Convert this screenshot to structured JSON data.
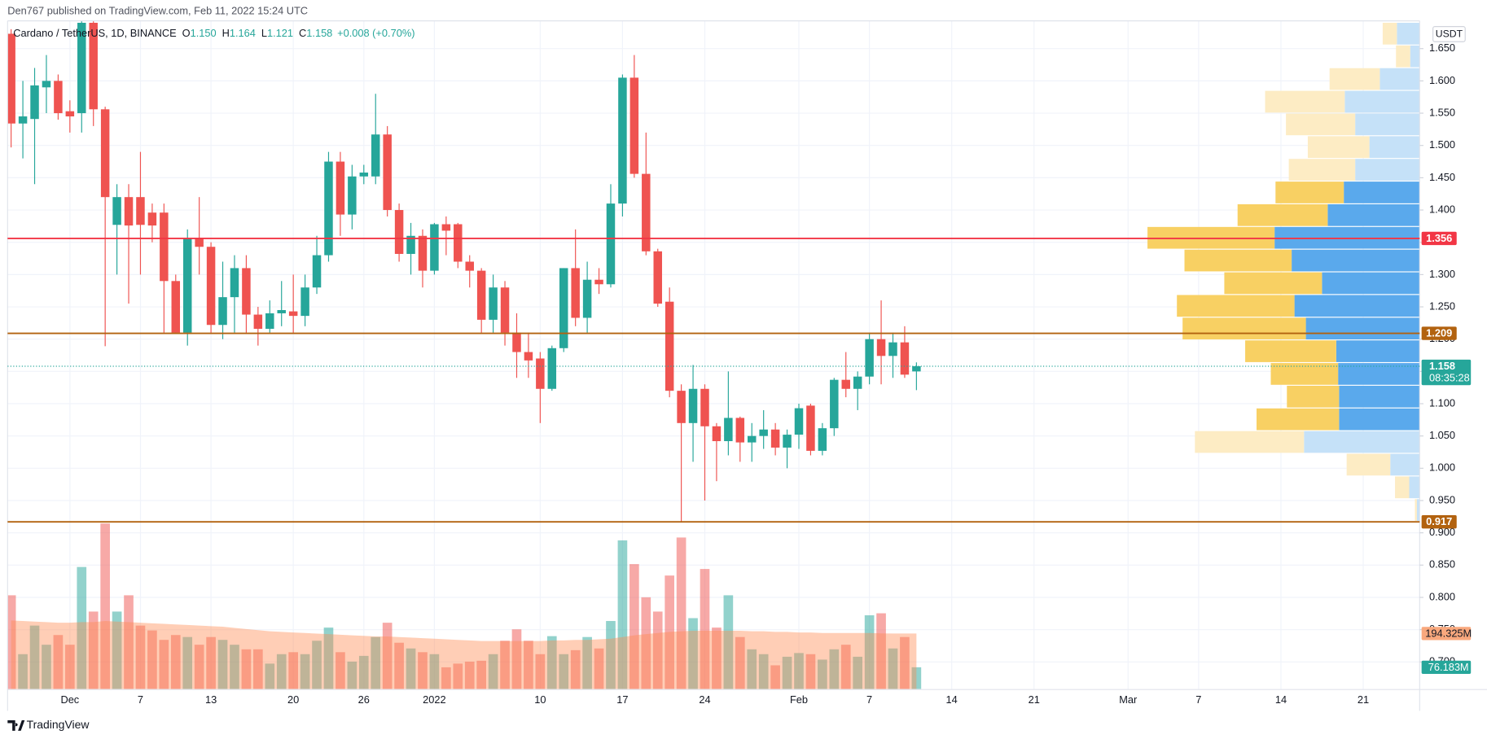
{
  "header": {
    "publisher": "Den767 published on TradingView.com, Feb 11, 2022 15:24 UTC"
  },
  "footer": {
    "brand": "TradingView"
  },
  "chart_data": {
    "type": "candlestick",
    "symbol": "Cardano / TetherUS, 1D, BINANCE",
    "ohlc_legend": [
      {
        "key": "O",
        "text": "1.150"
      },
      {
        "key": "H",
        "text": "1.164"
      },
      {
        "key": "L",
        "text": "1.121"
      },
      {
        "key": "C",
        "text": "1.158"
      }
    ],
    "change": "+0.008 (+0.70%)",
    "currency": "USDT",
    "up_color": "#26a69a",
    "down_color": "#ef5350",
    "open": [
      1.673,
      1.534,
      1.541,
      1.59,
      1.6,
      1.553,
      1.55,
      1.69,
      1.556,
      1.377,
      1.42,
      1.42,
      1.396,
      1.396,
      1.29,
      1.21,
      1.357,
      1.343,
      1.222,
      1.265,
      1.31,
      1.238,
      1.216,
      1.24,
      1.243,
      1.236,
      1.28,
      1.33,
      1.475,
      1.393,
      1.452,
      1.452,
      1.517,
      1.4,
      1.332,
      1.36,
      1.306,
      1.378,
      1.378,
      1.32,
      1.306,
      1.23,
      1.28,
      1.21,
      1.18,
      1.17,
      1.123,
      1.186,
      1.31,
      1.233,
      1.292,
      1.285,
      1.41,
      1.605,
      1.456,
      1.336,
      1.258,
      1.12,
      1.07,
      1.123,
      1.065,
      1.042,
      1.078,
      1.04,
      1.05,
      1.06,
      1.032,
      1.052,
      1.097,
      1.027,
      1.062,
      1.137,
      1.123,
      1.142,
      1.2,
      1.174,
      1.195,
      1.15
    ],
    "high": [
      1.68,
      1.6,
      1.62,
      1.64,
      1.61,
      1.57,
      1.7,
      1.7,
      1.56,
      1.44,
      1.44,
      1.49,
      1.41,
      1.41,
      1.3,
      1.37,
      1.42,
      1.35,
      1.32,
      1.33,
      1.33,
      1.25,
      1.26,
      1.29,
      1.3,
      1.3,
      1.36,
      1.49,
      1.49,
      1.47,
      1.47,
      1.58,
      1.53,
      1.41,
      1.38,
      1.37,
      1.38,
      1.39,
      1.38,
      1.33,
      1.31,
      1.3,
      1.29,
      1.24,
      1.21,
      1.18,
      1.19,
      1.31,
      1.37,
      1.32,
      1.31,
      1.44,
      1.61,
      1.64,
      1.52,
      1.34,
      1.28,
      1.13,
      1.16,
      1.13,
      1.07,
      1.15,
      1.08,
      1.07,
      1.09,
      1.07,
      1.06,
      1.1,
      1.1,
      1.07,
      1.14,
      1.18,
      1.15,
      1.21,
      1.26,
      1.21,
      1.22,
      1.164
    ],
    "low": [
      1.497,
      1.48,
      1.44,
      1.55,
      1.54,
      1.52,
      1.52,
      1.53,
      1.189,
      1.3,
      1.255,
      1.3,
      1.35,
      1.21,
      1.21,
      1.19,
      1.3,
      1.21,
      1.2,
      1.21,
      1.21,
      1.19,
      1.21,
      1.22,
      1.21,
      1.22,
      1.27,
      1.32,
      1.36,
      1.37,
      1.44,
      1.44,
      1.39,
      1.32,
      1.3,
      1.28,
      1.3,
      1.33,
      1.31,
      1.28,
      1.21,
      1.21,
      1.19,
      1.14,
      1.14,
      1.07,
      1.12,
      1.18,
      1.22,
      1.21,
      1.27,
      1.28,
      1.39,
      1.45,
      1.33,
      1.25,
      1.11,
      0.917,
      1.01,
      0.95,
      0.98,
      1.02,
      1.01,
      1.01,
      1.03,
      1.02,
      1.0,
      1.03,
      1.02,
      1.02,
      1.05,
      1.11,
      1.09,
      1.13,
      1.13,
      1.14,
      1.14,
      1.121
    ],
    "close": [
      1.534,
      1.545,
      1.593,
      1.6,
      1.55,
      1.545,
      1.69,
      1.556,
      1.42,
      1.42,
      1.376,
      1.377,
      1.376,
      1.29,
      1.21,
      1.357,
      1.343,
      1.222,
      1.265,
      1.31,
      1.238,
      1.216,
      1.24,
      1.245,
      1.236,
      1.28,
      1.33,
      1.475,
      1.393,
      1.452,
      1.458,
      1.517,
      1.4,
      1.332,
      1.36,
      1.306,
      1.378,
      1.368,
      1.32,
      1.306,
      1.23,
      1.28,
      1.21,
      1.18,
      1.167,
      1.123,
      1.186,
      1.31,
      1.233,
      1.292,
      1.285,
      1.41,
      1.605,
      1.456,
      1.336,
      1.255,
      1.12,
      1.07,
      1.123,
      1.065,
      1.042,
      1.078,
      1.04,
      1.05,
      1.06,
      1.032,
      1.052,
      1.093,
      1.027,
      1.062,
      1.137,
      1.123,
      1.142,
      1.2,
      1.174,
      1.195,
      1.145,
      1.158
    ],
    "volume": {
      "values": [
        328,
        122,
        222,
        155,
        189,
        155,
        427,
        271,
        579,
        271,
        328,
        222,
        205,
        172,
        189,
        182,
        155,
        182,
        172,
        155,
        139,
        139,
        89,
        122,
        129,
        122,
        169,
        215,
        129,
        96,
        116,
        182,
        232,
        162,
        142,
        129,
        122,
        76,
        89,
        96,
        99,
        122,
        169,
        209,
        169,
        122,
        185,
        122,
        136,
        182,
        142,
        238,
        520,
        437,
        321,
        271,
        397,
        530,
        248,
        420,
        215,
        328,
        182,
        139,
        122,
        83,
        113,
        126,
        122,
        103,
        139,
        155,
        113,
        258,
        265,
        142,
        182,
        76.183
      ],
      "last_label": "76.183M",
      "up_color": "rgba(38,166,154,0.5)",
      "down_color": "rgba(239,83,80,0.5)"
    },
    "volume_ma": {
      "values": [
        240,
        238,
        236,
        234,
        232,
        232,
        234,
        234,
        238,
        236,
        234,
        232,
        230,
        228,
        226,
        224,
        222,
        220,
        218,
        214,
        210,
        206,
        202,
        200,
        198,
        196,
        194,
        192,
        190,
        188,
        186,
        184,
        184,
        182,
        180,
        178,
        176,
        174,
        172,
        170,
        168,
        168,
        168,
        168,
        168,
        168,
        170,
        170,
        172,
        172,
        174,
        176,
        182,
        188,
        192,
        196,
        200,
        202,
        204,
        204,
        204,
        204,
        204,
        202,
        202,
        200,
        200,
        198,
        198,
        196,
        196,
        196,
        196,
        196,
        194.5,
        194.3,
        194.3,
        194.325
      ],
      "last_label": "194.325M",
      "color": "rgba(255,138,80,0.42)",
      "label_color": "#f9a87d"
    },
    "vlim": [
      0,
      600
    ],
    "xlim": [
      -0.3,
      119.8
    ],
    "xticks": [
      {
        "value": 5,
        "label": "Dec"
      },
      {
        "value": 11,
        "label": "7"
      },
      {
        "value": 17,
        "label": "13"
      },
      {
        "value": 24,
        "label": "20"
      },
      {
        "value": 30,
        "label": "26"
      },
      {
        "value": 36,
        "label": "2022"
      },
      {
        "value": 45,
        "label": "10"
      },
      {
        "value": 52,
        "label": "17"
      },
      {
        "value": 59,
        "label": "24"
      },
      {
        "value": 67,
        "label": "Feb"
      },
      {
        "value": 73,
        "label": "7"
      },
      {
        "value": 80,
        "label": "14"
      },
      {
        "value": 87,
        "label": "21"
      },
      {
        "value": 95,
        "label": "Mar"
      },
      {
        "value": 101,
        "label": "7"
      },
      {
        "value": 108,
        "label": "14"
      },
      {
        "value": 115,
        "label": "21"
      }
    ],
    "ylim": [
      0.658,
      1.693
    ],
    "yticks": [
      {
        "value": 1.65,
        "label": "1.650"
      },
      {
        "value": 1.6,
        "label": "1.600"
      },
      {
        "value": 1.55,
        "label": "1.550"
      },
      {
        "value": 1.5,
        "label": "1.500"
      },
      {
        "value": 1.45,
        "label": "1.450"
      },
      {
        "value": 1.4,
        "label": "1.400"
      },
      {
        "value": 1.35,
        "label": "1.350"
      },
      {
        "value": 1.3,
        "label": "1.300"
      },
      {
        "value": 1.25,
        "label": "1.250"
      },
      {
        "value": 1.2,
        "label": "1.200"
      },
      {
        "value": 1.15,
        "label": "1.150"
      },
      {
        "value": 1.1,
        "label": "1.100"
      },
      {
        "value": 1.05,
        "label": "1.050"
      },
      {
        "value": 1.0,
        "label": "1.000"
      },
      {
        "value": 0.95,
        "label": "0.950"
      },
      {
        "value": 0.9,
        "label": "0.900"
      },
      {
        "value": 0.85,
        "label": "0.850"
      },
      {
        "value": 0.8,
        "label": "0.800"
      },
      {
        "value": 0.75,
        "label": "0.750"
      },
      {
        "value": 0.7,
        "label": "0.700"
      }
    ],
    "grid": true,
    "levels": [
      {
        "value": 1.356,
        "label": "1.356",
        "color": "#f23645"
      },
      {
        "value": 1.209,
        "label": "1.209",
        "color": "#b2620f"
      },
      {
        "value": 0.917,
        "label": "0.917",
        "color": "#b2620f"
      }
    ],
    "last_price": {
      "value": 1.158,
      "label": "1.158",
      "countdown": "08:35:28",
      "color": "#26a69a"
    },
    "profile": {
      "high": 1.69,
      "low": 0.917,
      "up": [
        24,
        10,
        42,
        79,
        68,
        53,
        68,
        80,
        97,
        153,
        135,
        103,
        132,
        120,
        88,
        86,
        85,
        85,
        122,
        31,
        11,
        3
      ],
      "down": [
        15,
        15,
        53,
        84,
        73,
        65,
        70,
        72,
        95,
        134,
        113,
        103,
        124,
        130,
        96,
        71,
        55,
        87,
        115,
        46,
        15,
        2
      ],
      "value_area": [
        7,
        17
      ],
      "up_color": "#5aa9ec",
      "down_color": "#f8d063",
      "up_color_outside": "#c5e1f8",
      "down_color_outside": "#fdecc4"
    }
  }
}
